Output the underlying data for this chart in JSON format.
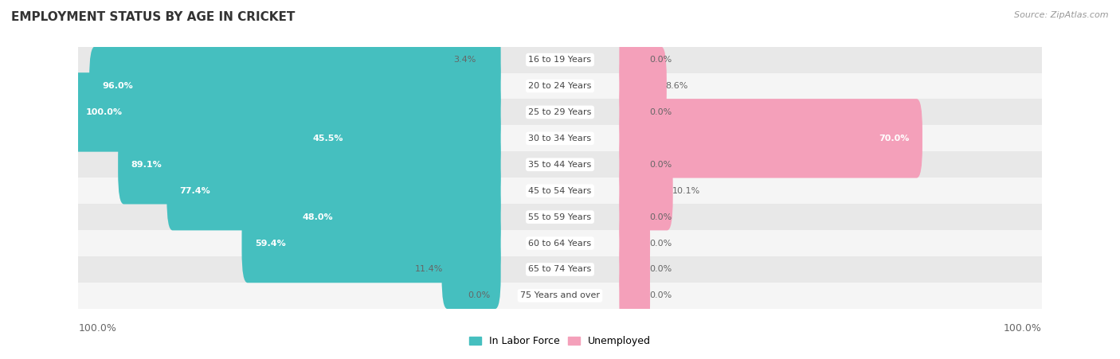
{
  "title": "EMPLOYMENT STATUS BY AGE IN CRICKET",
  "source": "Source: ZipAtlas.com",
  "categories": [
    "16 to 19 Years",
    "20 to 24 Years",
    "25 to 29 Years",
    "30 to 34 Years",
    "35 to 44 Years",
    "45 to 54 Years",
    "55 to 59 Years",
    "60 to 64 Years",
    "65 to 74 Years",
    "75 Years and over"
  ],
  "labor_force": [
    3.4,
    96.0,
    100.0,
    45.5,
    89.1,
    77.4,
    48.0,
    59.4,
    11.4,
    0.0
  ],
  "unemployed": [
    0.0,
    8.6,
    0.0,
    70.0,
    0.0,
    10.1,
    0.0,
    0.0,
    0.0,
    0.0
  ],
  "labor_color": "#45BFBF",
  "unemployed_color": "#F4A0BA",
  "row_bg_even": "#E8E8E8",
  "row_bg_odd": "#F5F5F5",
  "label_color_inside": "#FFFFFF",
  "label_color_outside": "#666666",
  "axis_label_left": "100.0%",
  "axis_label_right": "100.0%",
  "max_value": 100.0,
  "figsize": [
    14.06,
    4.51
  ],
  "dpi": 100
}
